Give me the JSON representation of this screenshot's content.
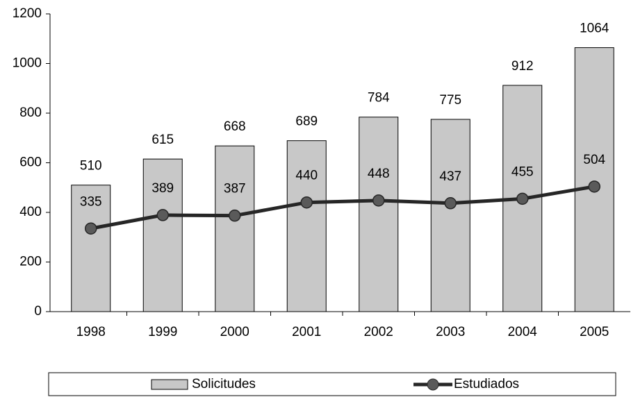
{
  "chart_data": {
    "type": "bar",
    "categories": [
      "1998",
      "1999",
      "2000",
      "2001",
      "2002",
      "2003",
      "2004",
      "2005"
    ],
    "series": [
      {
        "name": "Solicitudes",
        "type": "bar",
        "color": "#c8c8c8",
        "values": [
          510,
          615,
          668,
          689,
          784,
          775,
          912,
          1064
        ]
      },
      {
        "name": "Estudiados",
        "type": "line",
        "color": "#262626",
        "marker_color": "#5a5a5a",
        "values": [
          335,
          389,
          387,
          440,
          448,
          437,
          455,
          504
        ]
      }
    ],
    "ylim": [
      0,
      1200
    ],
    "yticks": [
      0,
      200,
      400,
      600,
      800,
      1000,
      1200
    ],
    "grid": false,
    "legend": "bottom"
  }
}
